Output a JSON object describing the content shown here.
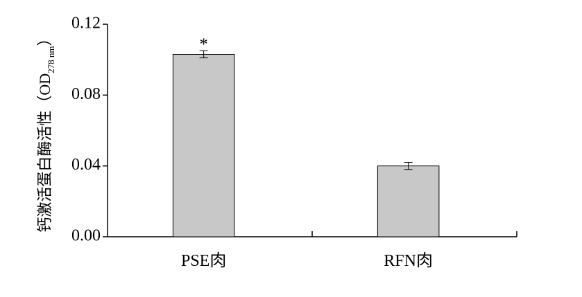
{
  "chart_data": {
    "type": "bar",
    "y_label": {
      "text": "钙激活蛋白酶活性（OD",
      "subscript": "278 nm",
      "closing": "）"
    },
    "categories": [
      "PSE肉",
      "RFN肉"
    ],
    "values": [
      0.103,
      0.04
    ],
    "errors": [
      0.002,
      0.002
    ],
    "annotations": [
      "*",
      null
    ],
    "color": "#c8c8c8",
    "ylim": [
      0,
      0.12
    ],
    "yticks": [
      {
        "value": 0,
        "label": "0.00"
      },
      {
        "value": 0.04,
        "label": "0.04"
      },
      {
        "value": 0.08,
        "label": "0.08"
      },
      {
        "value": 0.12,
        "label": "0.12"
      }
    ],
    "grid": false
  }
}
